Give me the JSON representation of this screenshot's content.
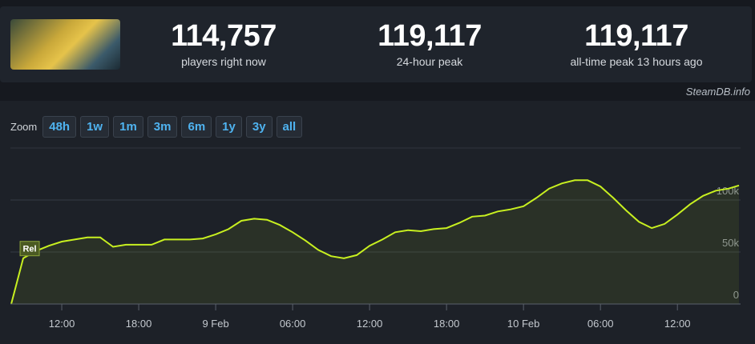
{
  "stats": [
    {
      "value": "114,757",
      "label": "players right now"
    },
    {
      "value": "119,117",
      "label": "24-hour peak"
    },
    {
      "value": "119,117",
      "label": "all-time peak 13 hours ago"
    }
  ],
  "watermark": "SteamDB.info",
  "zoom": {
    "label": "Zoom",
    "buttons": [
      "48h",
      "1w",
      "1m",
      "3m",
      "6m",
      "1y",
      "3y",
      "all"
    ]
  },
  "chart_data": {
    "type": "line",
    "annotation": "Rel",
    "x": [
      8.06,
      9,
      10,
      11,
      12,
      13,
      14,
      15,
      16,
      17,
      18,
      19,
      20,
      21,
      22,
      23,
      24,
      25,
      26,
      27,
      28,
      29,
      30,
      31,
      32,
      33,
      34,
      35,
      36,
      37,
      38,
      39,
      40,
      41,
      42,
      43,
      44,
      45,
      46,
      47,
      48,
      49,
      50,
      51,
      52,
      53,
      54,
      55,
      56,
      57,
      58,
      59,
      60,
      61,
      62,
      63,
      64,
      64.8
    ],
    "series": [
      {
        "color": "#c8f020",
        "values": [
          0,
          44000,
          51000,
          56000,
          60000,
          62000,
          64000,
          64000,
          55000,
          57000,
          57000,
          57000,
          62000,
          62000,
          62000,
          63000,
          67000,
          72000,
          80000,
          82000,
          81000,
          76000,
          69000,
          61000,
          52000,
          46000,
          44000,
          47000,
          56000,
          62000,
          69000,
          71000,
          70000,
          72000,
          73000,
          78000,
          84000,
          85000,
          89000,
          91000,
          94000,
          102000,
          111000,
          116000,
          119000,
          119000,
          113000,
          102000,
          90000,
          79000,
          73000,
          77000,
          86000,
          96000,
          104000,
          109000,
          111000,
          114000
        ]
      }
    ],
    "xlim": [
      8.06,
      64.8
    ],
    "xticks": [
      {
        "value": 12,
        "label": "12:00"
      },
      {
        "value": 18,
        "label": "18:00"
      },
      {
        "value": 24,
        "label": "9 Feb"
      },
      {
        "value": 30,
        "label": "06:00"
      },
      {
        "value": 36,
        "label": "12:00"
      },
      {
        "value": 42,
        "label": "18:00"
      },
      {
        "value": 48,
        "label": "10 Feb"
      },
      {
        "value": 54,
        "label": "06:00"
      },
      {
        "value": 60,
        "label": "12:00"
      }
    ],
    "ylim": [
      0,
      150000
    ],
    "yticks": [
      0,
      {
        "value": 50000,
        "label": "50k"
      },
      {
        "value": 100000,
        "label": "100k"
      }
    ],
    "grid": true
  }
}
